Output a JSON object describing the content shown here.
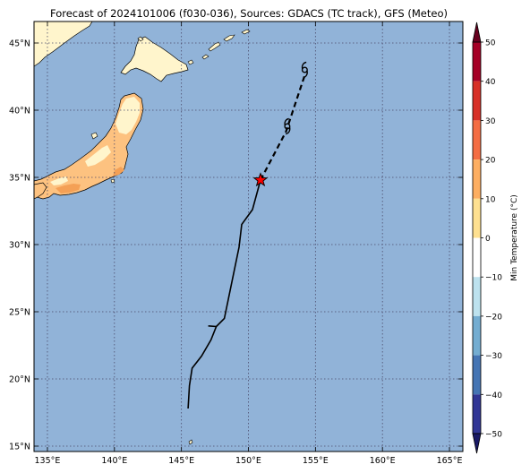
{
  "title": "Forecast of 2024101006 (f030-036), Sources: GDACS (TC track), GFS (Meteo)",
  "map": {
    "lon_range": [
      134,
      166
    ],
    "lat_range": [
      14.6,
      46.6
    ],
    "lon_ticks": [
      135,
      140,
      145,
      150,
      155,
      160,
      165
    ],
    "lon_tick_labels": [
      "135°E",
      "140°E",
      "145°E",
      "150°E",
      "155°E",
      "160°E",
      "165°E"
    ],
    "lat_ticks": [
      15,
      20,
      25,
      30,
      35,
      40,
      45
    ],
    "lat_tick_labels": [
      "15°N",
      "20°N",
      "25°N",
      "30°N",
      "35°N",
      "40°N",
      "45°N"
    ],
    "gridlines": true,
    "ocean_color": "#91b3d8",
    "land_colors": {
      "cold": "#fff5cc",
      "warm": "#fdc280",
      "hot": "#f4a056"
    }
  },
  "track": {
    "past": [
      [
        145.5,
        17.8
      ],
      [
        145.6,
        19.5
      ],
      [
        145.8,
        20.8
      ],
      [
        146.5,
        21.7
      ],
      [
        147.2,
        22.9
      ],
      [
        147.6,
        23.9
      ],
      [
        148.2,
        24.5
      ],
      [
        149.3,
        29.8
      ],
      [
        149.5,
        31.5
      ],
      [
        150.3,
        32.6
      ],
      [
        150.9,
        34.8
      ]
    ],
    "past_branch": [
      [
        147.0,
        23.95
      ],
      [
        147.6,
        23.9
      ]
    ],
    "forecast": [
      [
        150.9,
        34.8
      ],
      [
        152.8,
        38.4
      ],
      [
        154.2,
        42.6
      ]
    ],
    "current_position": [
      150.9,
      34.8
    ],
    "symbol_positions": [
      [
        152.9,
        38.8
      ],
      [
        154.2,
        43.0
      ]
    ],
    "marker_color": "#ff0000"
  },
  "colorbar": {
    "label": "Min Temperature (°C)",
    "min": -50,
    "max": 50,
    "ticks": [
      50,
      40,
      30,
      20,
      10,
      0,
      -10,
      -20,
      -30,
      -40,
      -50
    ],
    "tick_labels": [
      "50",
      "40",
      "30",
      "20",
      "10",
      "0",
      "−10",
      "−20",
      "−30",
      "−40",
      "−50"
    ],
    "segments": [
      {
        "lo": 40,
        "hi": 50,
        "color": "#a50026"
      },
      {
        "lo": 30,
        "hi": 40,
        "color": "#d73027"
      },
      {
        "lo": 20,
        "hi": 30,
        "color": "#f46d43"
      },
      {
        "lo": 10,
        "hi": 20,
        "color": "#fdae61"
      },
      {
        "lo": 0,
        "hi": 10,
        "color": "#fee090"
      },
      {
        "lo": -10,
        "hi": 0,
        "color": "#ffffff"
      },
      {
        "lo": -20,
        "hi": -10,
        "color": "#bde2ee"
      },
      {
        "lo": -30,
        "hi": -20,
        "color": "#74add1"
      },
      {
        "lo": -40,
        "hi": -30,
        "color": "#4575b4"
      },
      {
        "lo": -50,
        "hi": -40,
        "color": "#313695"
      }
    ],
    "over_color": "#67001f",
    "under_color": "#1a1a66"
  }
}
